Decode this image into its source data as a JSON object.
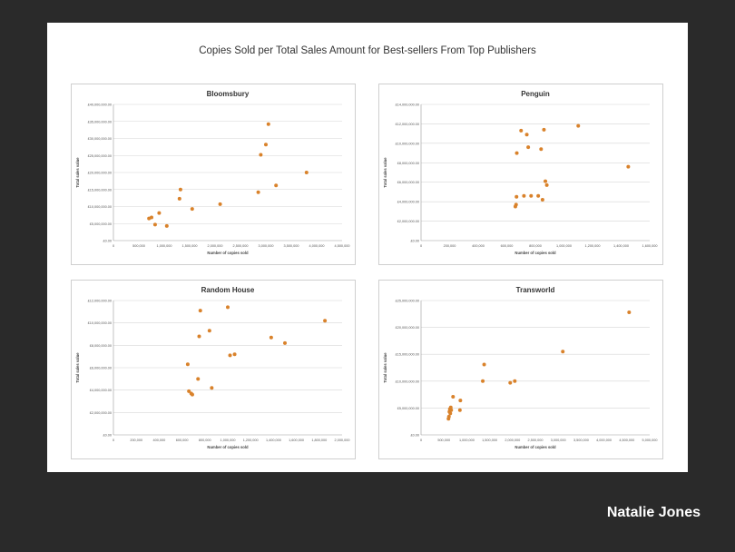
{
  "slide": {
    "title": "Copies Sold per Total Sales Amount for Best-sellers From Top Publishers",
    "author": "Natalie Jones"
  },
  "colors": {
    "point": "#d9822b",
    "grid": "#d6d6d6",
    "axis": "#9a9a9a",
    "text": "#555555"
  },
  "chart_data": [
    {
      "type": "scatter",
      "title": "Bloomsbury",
      "xlabel": "Number of copies sold",
      "ylabel": "Total sales value",
      "xlim": [
        0,
        4500000
      ],
      "ylim": [
        0,
        40000000
      ],
      "xticks": [
        "0",
        "500,000",
        "1,000,000",
        "1,500,000",
        "2,000,000",
        "2,500,000",
        "3,000,000",
        "3,500,000",
        "4,000,000",
        "4,500,000"
      ],
      "yticks": [
        "£0.00",
        "£5,000,000.00",
        "£10,000,000.00",
        "£15,000,000.00",
        "£20,000,000.00",
        "£25,000,000.00",
        "£30,000,000.00",
        "£35,000,000.00",
        "£40,000,000.00"
      ],
      "x": [
        700000,
        750000,
        820000,
        900000,
        1050000,
        1300000,
        1320000,
        1550000,
        2100000,
        2850000,
        2900000,
        3000000,
        3050000,
        3200000,
        3800000
      ],
      "y": [
        6500000,
        6800000,
        4700000,
        8100000,
        4300000,
        12300000,
        15000000,
        9300000,
        10700000,
        14200000,
        25200000,
        28200000,
        34200000,
        16200000,
        20000000
      ]
    },
    {
      "type": "scatter",
      "title": "Penguin",
      "xlabel": "Number of copies sold",
      "ylabel": "Total sales value",
      "xlim": [
        0,
        1600000
      ],
      "ylim": [
        0,
        14000000
      ],
      "xticks": [
        "0",
        "200,000",
        "400,000",
        "600,000",
        "800,000",
        "1,000,000",
        "1,200,000",
        "1,400,000",
        "1,600,000"
      ],
      "yticks": [
        "£0.00",
        "£2,000,000.00",
        "£4,000,000.00",
        "£6,000,000.00",
        "£8,000,000.00",
        "£10,000,000.00",
        "£12,000,000.00",
        "£14,000,000.00"
      ],
      "x": [
        660000,
        665000,
        668000,
        670000,
        700000,
        720000,
        740000,
        750000,
        770000,
        820000,
        840000,
        850000,
        860000,
        870000,
        880000,
        1100000,
        1450000
      ],
      "y": [
        3500000,
        3700000,
        4500000,
        9000000,
        11300000,
        4600000,
        10900000,
        9600000,
        4600000,
        4600000,
        9400000,
        4200000,
        11400000,
        6100000,
        5700000,
        11800000,
        7600000
      ]
    },
    {
      "type": "scatter",
      "title": "Random House",
      "xlabel": "Number of copies sold",
      "ylabel": "Total sales value",
      "xlim": [
        0,
        2000000
      ],
      "ylim": [
        0,
        12000000
      ],
      "xticks": [
        "0",
        "200,000",
        "400,000",
        "600,000",
        "800,000",
        "1,000,000",
        "1,200,000",
        "1,400,000",
        "1,600,000",
        "1,800,000",
        "2,000,000"
      ],
      "yticks": [
        "£0.00",
        "£2,000,000.00",
        "£4,000,000.00",
        "£6,000,000.00",
        "£8,000,000.00",
        "£10,000,000.00",
        "£12,000,000.00"
      ],
      "x": [
        650000,
        660000,
        680000,
        690000,
        740000,
        750000,
        760000,
        840000,
        860000,
        1000000,
        1020000,
        1060000,
        1380000,
        1500000,
        1850000
      ],
      "y": [
        6300000,
        3900000,
        3700000,
        3600000,
        5000000,
        8800000,
        11100000,
        9300000,
        4200000,
        11400000,
        7100000,
        7200000,
        8700000,
        8200000,
        10200000
      ]
    },
    {
      "type": "scatter",
      "title": "Transworld",
      "xlabel": "Number of copies sold",
      "ylabel": "Total sales value",
      "xlim": [
        0,
        5000000
      ],
      "ylim": [
        0,
        25000000
      ],
      "xticks": [
        "0",
        "500,000",
        "1,000,000",
        "1,500,000",
        "2,000,000",
        "2,500,000",
        "3,000,000",
        "3,500,000",
        "4,000,000",
        "4,500,000",
        "5,000,000"
      ],
      "yticks": [
        "£0.00",
        "£5,000,000.00",
        "£10,000,000.00",
        "£15,000,000.00",
        "£20,000,000.00",
        "£25,000,000.00"
      ],
      "x": [
        600000,
        610000,
        620000,
        630000,
        640000,
        650000,
        660000,
        700000,
        850000,
        860000,
        1350000,
        1380000,
        1950000,
        2050000,
        3100000,
        4550000
      ],
      "y": [
        3000000,
        3400000,
        4300000,
        4800000,
        4000000,
        5100000,
        4600000,
        7100000,
        4600000,
        6400000,
        10000000,
        13100000,
        9700000,
        10000000,
        15500000,
        22800000
      ]
    }
  ]
}
